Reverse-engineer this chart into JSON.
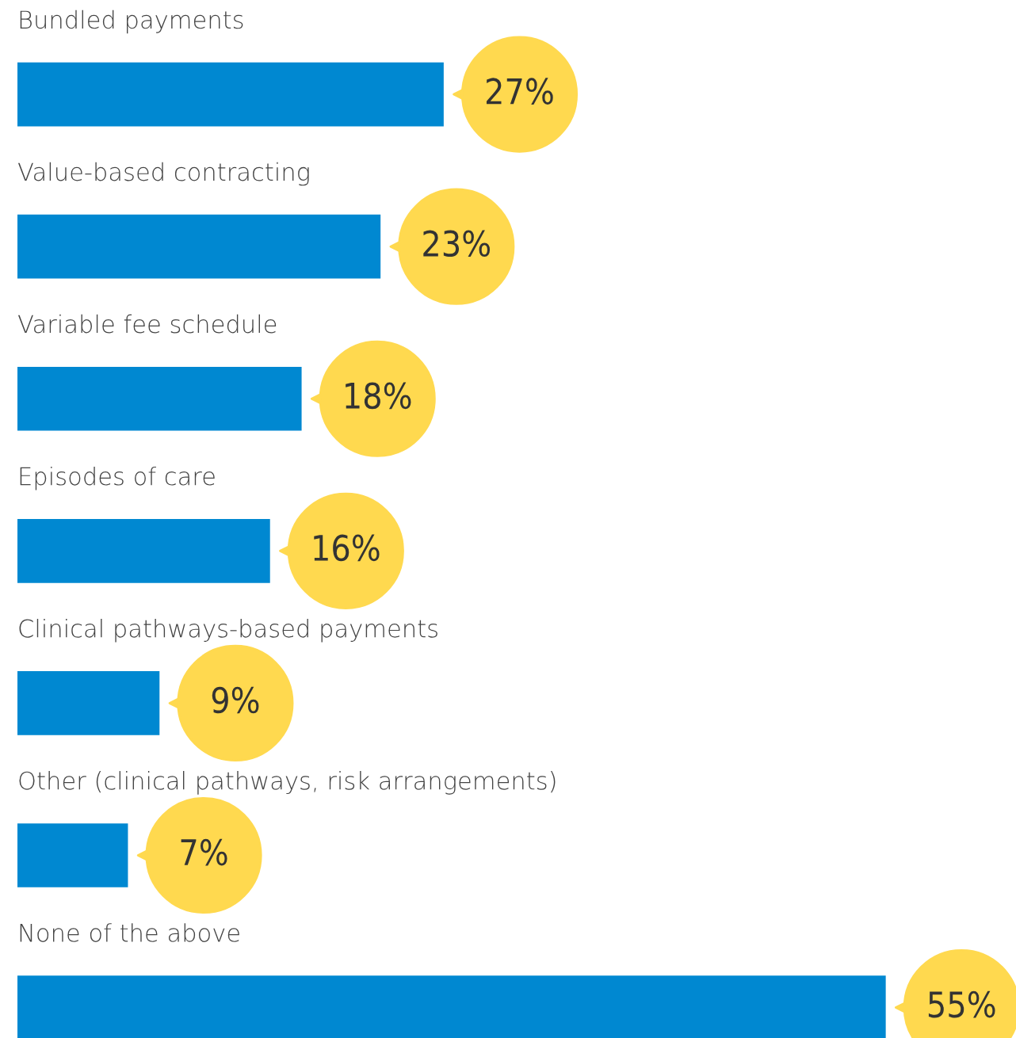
{
  "chart_data": {
    "type": "bar",
    "orientation": "horizontal",
    "categories": [
      "Bundled payments",
      "Value-based contracting",
      "Variable fee schedule",
      "Episodes of care",
      "Clinical pathways-based payments",
      "Other (clinical pathways, risk arrangements)",
      "None of the above"
    ],
    "values": [
      27,
      23,
      18,
      16,
      9,
      7,
      55
    ],
    "value_labels": [
      "27%",
      "23%",
      "18%",
      "16%",
      "9%",
      "7%",
      "55%"
    ],
    "color": "#0088d1"
  }
}
